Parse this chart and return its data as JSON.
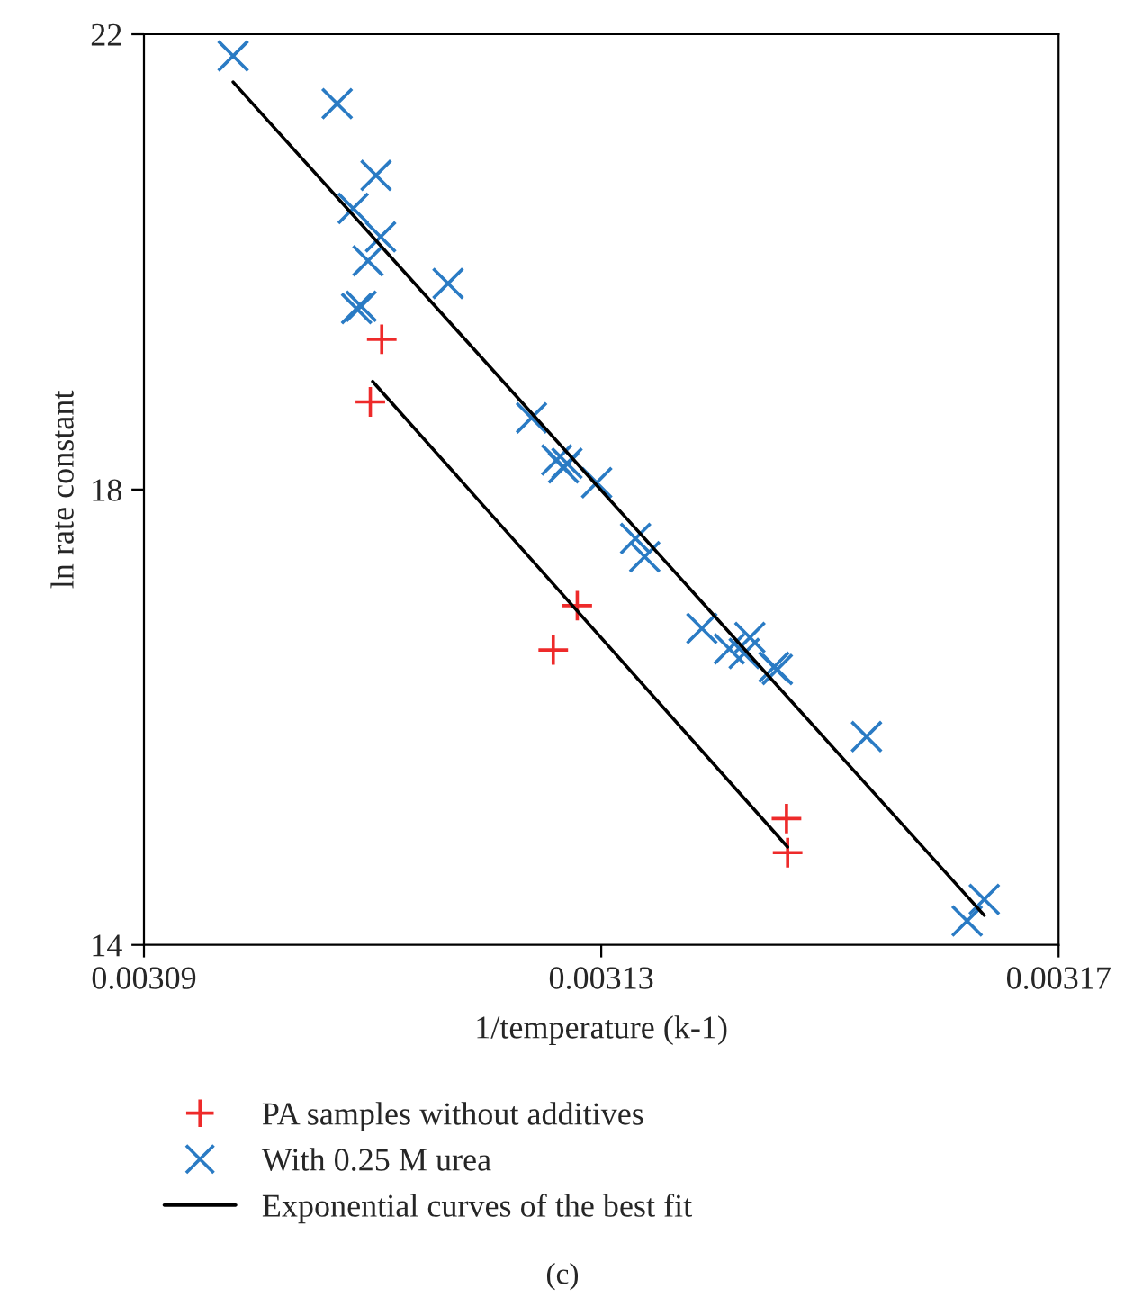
{
  "chart_data": {
    "type": "scatter",
    "xlabel": "1/temperature (k-1)",
    "ylabel": "ln rate constant",
    "xlim": [
      0.00309,
      0.00317
    ],
    "xticks": [
      0.00309,
      0.00313,
      0.00317
    ],
    "ylim": [
      14,
      22
    ],
    "yticks": [
      14,
      18,
      22
    ],
    "grid": false,
    "legend": "bottom",
    "annotations": [
      "(c)"
    ],
    "series": [
      {
        "name": "PA samples without additives",
        "marker": "plus",
        "color": "#ee2a2a",
        "x": [
          0.0031108,
          0.0031098,
          0.0031279,
          0.0031258,
          0.0031462,
          0.0031463
        ],
        "values": [
          19.32,
          18.77,
          16.98,
          16.59,
          15.11,
          14.81
        ]
      },
      {
        "name": "With 0.25 M urea",
        "marker": "cross",
        "color": "#2a7bc4",
        "x": [
          0.0030978,
          0.0031069,
          0.0031103,
          0.0031083,
          0.0031107,
          0.0031096,
          0.0031166,
          0.003109,
          0.0031086,
          0.0031239,
          0.0031261,
          0.0031267,
          0.003127,
          0.0031296,
          0.003133,
          0.0031338,
          0.0031388,
          0.0031412,
          0.003143,
          0.0031425,
          0.0031451,
          0.0031454,
          0.0031532,
          0.003162,
          0.0031635
        ],
        "values": [
          21.81,
          21.39,
          20.76,
          20.47,
          20.22,
          20.01,
          19.81,
          19.61,
          19.59,
          18.63,
          18.26,
          18.19,
          18.23,
          18.06,
          17.57,
          17.41,
          16.78,
          16.6,
          16.7,
          16.56,
          16.44,
          16.42,
          15.83,
          14.21,
          14.4
        ]
      },
      {
        "name": "Exponential curves of the best fit",
        "type": "line",
        "marker": "none",
        "line_style": "solid",
        "color": "#000000",
        "x": [
          0.0030978,
          0.0031635
        ],
        "values": [
          21.58,
          14.26
        ]
      },
      {
        "type": "line",
        "marker": "none",
        "line_style": "solid",
        "color": "#000000",
        "x": [
          0.00311,
          0.0031463
        ],
        "values": [
          18.95,
          14.86
        ]
      }
    ]
  }
}
